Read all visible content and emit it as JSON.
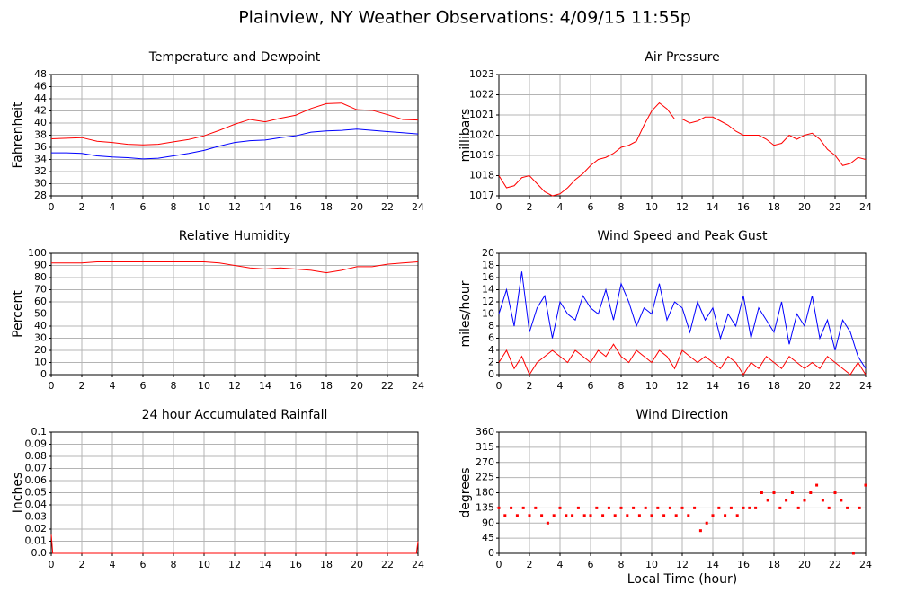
{
  "title": "Plainview, NY Weather Observations: 4/09/15 11:55p",
  "chart_data": [
    {
      "type": "line",
      "title": "Temperature and Dewpoint",
      "ylabel": "Fahrenheit",
      "x": [
        0,
        1,
        2,
        3,
        4,
        5,
        6,
        7,
        8,
        9,
        10,
        11,
        12,
        13,
        14,
        15,
        16,
        17,
        18,
        19,
        20,
        21,
        22,
        23,
        24
      ],
      "series": [
        {
          "color": "#ff0000",
          "values": [
            37.4,
            37.5,
            37.6,
            37.0,
            36.8,
            36.5,
            36.4,
            36.5,
            36.9,
            37.3,
            37.9,
            38.8,
            39.8,
            40.6,
            40.2,
            40.8,
            41.3,
            42.4,
            43.2,
            43.3,
            42.2,
            42.1,
            41.4,
            40.6,
            40.5
          ]
        },
        {
          "color": "#0000ff",
          "values": [
            35.1,
            35.1,
            35.0,
            34.6,
            34.4,
            34.3,
            34.1,
            34.2,
            34.6,
            35.0,
            35.5,
            36.2,
            36.8,
            37.1,
            37.2,
            37.6,
            37.9,
            38.5,
            38.7,
            38.8,
            39.0,
            38.8,
            38.6,
            38.4,
            38.2
          ]
        }
      ],
      "xlim": [
        0,
        24
      ],
      "xticks": [
        0,
        2,
        4,
        6,
        8,
        10,
        12,
        14,
        16,
        18,
        20,
        22,
        24
      ],
      "ylim": [
        28,
        48
      ],
      "yticks": [
        28,
        30,
        32,
        34,
        36,
        38,
        40,
        42,
        44,
        46,
        48
      ],
      "grid": true
    },
    {
      "type": "line",
      "title": "Air Pressure",
      "ylabel": "millibars",
      "x": [
        0,
        0.5,
        1,
        1.5,
        2,
        2.5,
        3,
        3.5,
        4,
        4.5,
        5,
        5.5,
        6,
        6.5,
        7,
        7.5,
        8,
        8.5,
        9,
        9.5,
        10,
        10.5,
        11,
        11.5,
        12,
        12.5,
        13,
        13.5,
        14,
        14.5,
        15,
        15.5,
        16,
        16.5,
        17,
        17.5,
        18,
        18.5,
        19,
        19.5,
        20,
        20.5,
        21,
        21.5,
        22,
        22.5,
        23,
        23.5,
        24
      ],
      "series": [
        {
          "color": "#ff0000",
          "values": [
            1018,
            1017.4,
            1017.5,
            1017.9,
            1018,
            1017.6,
            1017.2,
            1017,
            1017.1,
            1017.4,
            1017.8,
            1018.1,
            1018.5,
            1018.8,
            1018.9,
            1019.1,
            1019.4,
            1019.5,
            1019.7,
            1020.5,
            1021.2,
            1021.6,
            1021.3,
            1020.8,
            1020.8,
            1020.6,
            1020.7,
            1020.9,
            1020.9,
            1020.7,
            1020.5,
            1020.2,
            1020,
            1020,
            1020,
            1019.8,
            1019.5,
            1019.6,
            1020,
            1019.8,
            1020,
            1020.1,
            1019.8,
            1019.3,
            1019,
            1018.5,
            1018.6,
            1018.9,
            1018.8
          ]
        }
      ],
      "xlim": [
        0,
        24
      ],
      "xticks": [
        0,
        2,
        4,
        6,
        8,
        10,
        12,
        14,
        16,
        18,
        20,
        22,
        24
      ],
      "ylim": [
        1017,
        1023
      ],
      "yticks": [
        1017,
        1018,
        1019,
        1020,
        1021,
        1022,
        1023
      ],
      "grid": true
    },
    {
      "type": "line",
      "title": "Relative Humidity",
      "ylabel": "Percent",
      "x": [
        0,
        1,
        2,
        3,
        4,
        5,
        6,
        7,
        8,
        9,
        10,
        11,
        12,
        13,
        14,
        15,
        16,
        17,
        18,
        19,
        20,
        21,
        22,
        23,
        24
      ],
      "series": [
        {
          "color": "#ff0000",
          "values": [
            92,
            92,
            92,
            93,
            93,
            93,
            93,
            93,
            93,
            93,
            93,
            92,
            90,
            88,
            87,
            88,
            87,
            86,
            84,
            86,
            89,
            89,
            91,
            92,
            93
          ]
        }
      ],
      "xlim": [
        0,
        24
      ],
      "xticks": [
        0,
        2,
        4,
        6,
        8,
        10,
        12,
        14,
        16,
        18,
        20,
        22,
        24
      ],
      "ylim": [
        0,
        100
      ],
      "yticks": [
        0,
        10,
        20,
        30,
        40,
        50,
        60,
        70,
        80,
        90,
        100
      ],
      "grid": true
    },
    {
      "type": "line",
      "title": "Wind Speed and Peak Gust",
      "ylabel": "miles/hour",
      "x": [
        0,
        0.5,
        1,
        1.5,
        2,
        2.5,
        3,
        3.5,
        4,
        4.5,
        5,
        5.5,
        6,
        6.5,
        7,
        7.5,
        8,
        8.5,
        9,
        9.5,
        10,
        10.5,
        11,
        11.5,
        12,
        12.5,
        13,
        13.5,
        14,
        14.5,
        15,
        15.5,
        16,
        16.5,
        17,
        17.5,
        18,
        18.5,
        19,
        19.5,
        20,
        20.5,
        21,
        21.5,
        22,
        22.5,
        23,
        23.5,
        24
      ],
      "series": [
        {
          "color": "#0000ff",
          "values": [
            10,
            14,
            8,
            17,
            7,
            11,
            13,
            6,
            12,
            10,
            9,
            13,
            11,
            10,
            14,
            9,
            15,
            12,
            8,
            11,
            10,
            15,
            9,
            12,
            11,
            7,
            12,
            9,
            11,
            6,
            10,
            8,
            13,
            6,
            11,
            9,
            7,
            12,
            5,
            10,
            8,
            13,
            6,
            9,
            4,
            9,
            7,
            3,
            1
          ]
        },
        {
          "color": "#ff0000",
          "values": [
            2,
            4,
            1,
            3,
            0,
            2,
            3,
            4,
            3,
            2,
            4,
            3,
            2,
            4,
            3,
            5,
            3,
            2,
            4,
            3,
            2,
            4,
            3,
            1,
            4,
            3,
            2,
            3,
            2,
            1,
            3,
            2,
            0,
            2,
            1,
            3,
            2,
            1,
            3,
            2,
            1,
            2,
            1,
            3,
            2,
            1,
            0,
            2,
            0
          ]
        }
      ],
      "xlim": [
        0,
        24
      ],
      "xticks": [
        0,
        2,
        4,
        6,
        8,
        10,
        12,
        14,
        16,
        18,
        20,
        22,
        24
      ],
      "ylim": [
        0,
        20
      ],
      "yticks": [
        0,
        2,
        4,
        6,
        8,
        10,
        12,
        14,
        16,
        18,
        20
      ],
      "grid": true
    },
    {
      "type": "line",
      "title": "24 hour Accumulated Rainfall",
      "ylabel": "Inches",
      "x": [
        0,
        0.1,
        23.9,
        24
      ],
      "series": [
        {
          "color": "#ff0000",
          "values": [
            0.016,
            0,
            0,
            0.01
          ]
        }
      ],
      "xlim": [
        0,
        24
      ],
      "xticks": [
        0,
        2,
        4,
        6,
        8,
        10,
        12,
        14,
        16,
        18,
        20,
        22,
        24
      ],
      "ylim": [
        0,
        0.1
      ],
      "yticks": [
        {
          "value": 0,
          "label": "0.0"
        },
        0.01,
        0.02,
        0.03,
        0.04,
        0.05,
        0.06,
        0.07,
        0.08,
        0.09,
        0.1
      ],
      "grid": true
    },
    {
      "type": "scatter",
      "title": "Wind Direction",
      "ylabel": "degrees",
      "xlabel": "Local Time (hour)",
      "x": [
        0,
        0.4,
        0.8,
        1.2,
        1.6,
        2,
        2.4,
        2.8,
        3.2,
        3.6,
        4,
        4.4,
        4.8,
        5.2,
        5.6,
        6,
        6.4,
        6.8,
        7.2,
        7.6,
        8,
        8.4,
        8.8,
        9.2,
        9.6,
        10,
        10.4,
        10.8,
        11.2,
        11.6,
        12,
        12.4,
        12.8,
        13.2,
        13.6,
        14,
        14.4,
        14.8,
        15.2,
        15.6,
        16,
        16.4,
        16.8,
        17.2,
        17.6,
        18,
        18.4,
        18.8,
        19.2,
        19.6,
        20,
        20.4,
        20.8,
        21.2,
        21.6,
        22,
        22.4,
        22.8,
        23.2,
        23.6,
        24
      ],
      "series": [
        {
          "color": "#ff0000",
          "values": [
            135,
            112.5,
            135,
            112.5,
            135,
            112.5,
            135,
            112.5,
            90,
            112.5,
            135,
            112.5,
            112.5,
            135,
            112.5,
            112.5,
            135,
            112.5,
            135,
            112.5,
            135,
            112.5,
            135,
            112.5,
            135,
            112.5,
            135,
            112.5,
            135,
            112.5,
            135,
            112.5,
            135,
            67.5,
            90,
            112.5,
            135,
            112.5,
            135,
            112.5,
            135,
            135,
            135,
            180,
            157.5,
            180,
            135,
            157.5,
            180,
            135,
            157.5,
            180,
            202.5,
            157.5,
            135,
            180,
            157.5,
            135,
            0,
            135,
            202.5
          ]
        }
      ],
      "xlim": [
        0,
        24
      ],
      "xticks": [
        0,
        2,
        4,
        6,
        8,
        10,
        12,
        14,
        16,
        18,
        20,
        22,
        24
      ],
      "ylim": [
        0,
        360
      ],
      "yticks": [
        0,
        45,
        90,
        135,
        180,
        225,
        270,
        315,
        360
      ],
      "grid": true
    }
  ]
}
